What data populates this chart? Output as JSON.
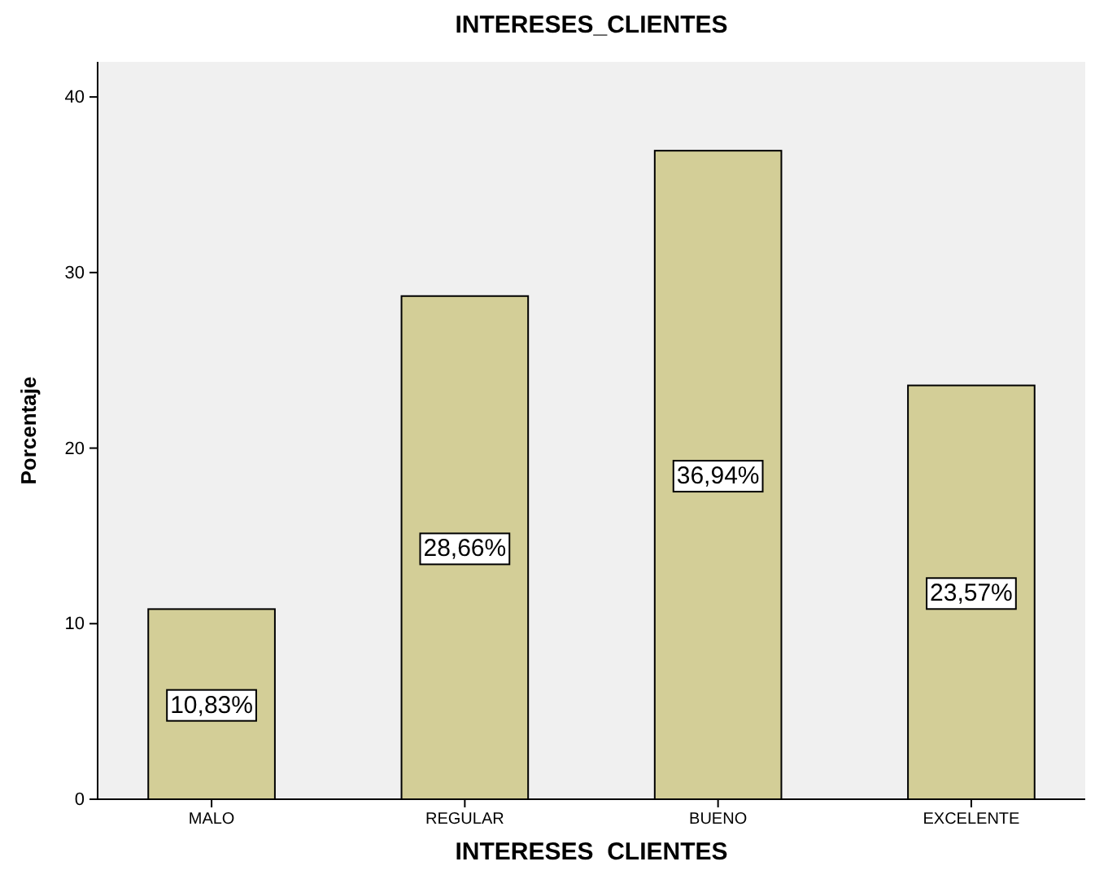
{
  "chart_data": {
    "type": "bar",
    "title": "INTERESES_CLIENTES",
    "xlabel": "INTERESES  CLIENTES",
    "ylabel": "Porcentaje",
    "categories": [
      "MALO",
      "REGULAR",
      "BUENO",
      "EXCELENTE"
    ],
    "values": [
      10.83,
      28.66,
      36.94,
      23.57
    ],
    "value_labels": [
      "10,83%",
      "28,66%",
      "36,94%",
      "23,57%"
    ],
    "color": "#d3ce97",
    "ylim": [
      0,
      42
    ],
    "yticks": [
      0,
      10,
      20,
      30,
      40
    ]
  }
}
